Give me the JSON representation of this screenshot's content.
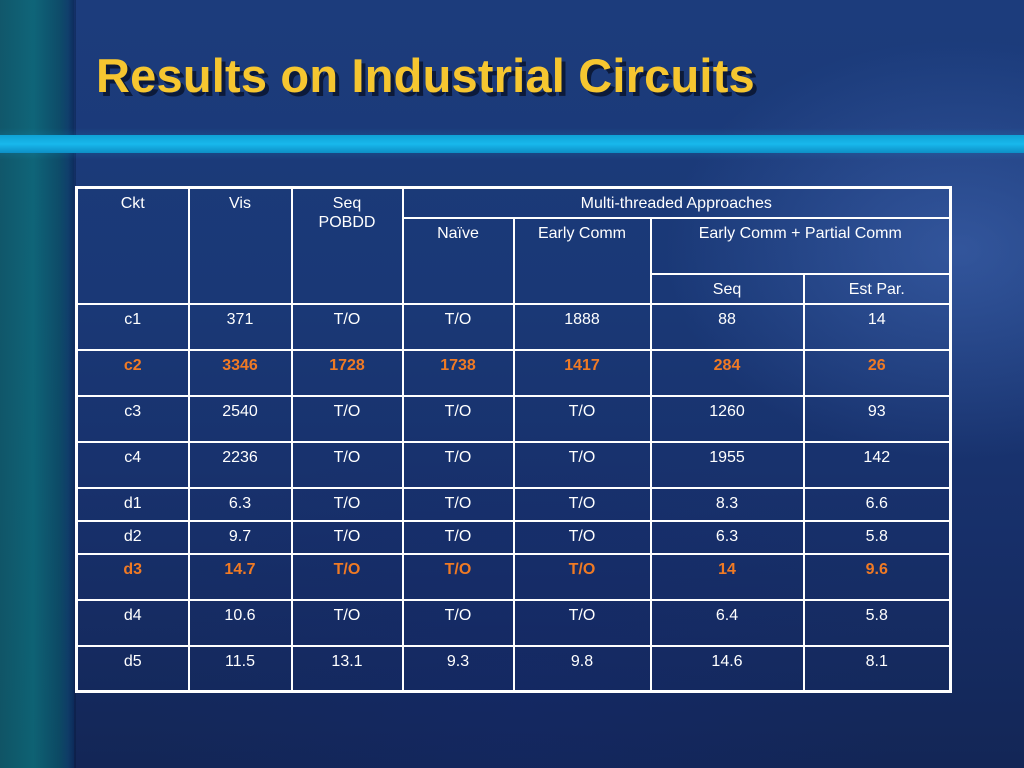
{
  "slide": {
    "title": "Results on Industrial Circuits"
  },
  "table": {
    "headers": {
      "ckt": "Ckt",
      "vis": "Vis",
      "seq_pobdd": "Seq\nPOBDD",
      "multi_threaded": "Multi-threaded Approaches",
      "naive": "Naïve",
      "early_comm": "Early Comm",
      "early_partial": "Early Comm + Partial Comm",
      "seq": "Seq",
      "est_par": "Est Par."
    },
    "rows": [
      [
        "c1",
        "371",
        "T/O",
        "T/O",
        "1888",
        "88",
        "14"
      ],
      [
        "c2",
        "3346",
        "1728",
        "1738",
        "1417",
        "284",
        "26"
      ],
      [
        "c3",
        "2540",
        "T/O",
        "T/O",
        "T/O",
        "1260",
        "93"
      ],
      [
        "c4",
        "2236",
        "T/O",
        "T/O",
        "T/O",
        "1955",
        "142"
      ],
      [
        "d1",
        "6.3",
        "T/O",
        "T/O",
        "T/O",
        "8.3",
        "6.6"
      ],
      [
        "d2",
        "9.7",
        "T/O",
        "T/O",
        "T/O",
        "6.3",
        "5.8"
      ],
      [
        "d3",
        "14.7",
        "T/O",
        "T/O",
        "T/O",
        "14",
        "9.6"
      ],
      [
        "d4",
        "10.6",
        "T/O",
        "T/O",
        "T/O",
        "6.4",
        "5.8"
      ],
      [
        "d5",
        "11.5",
        "13.1",
        "9.3",
        "9.8",
        "14.6",
        "8.1"
      ]
    ],
    "highlight_color": "#f07a24"
  },
  "colors": {
    "title": "#f6c630",
    "background": "#1a3876",
    "stripe": "#18b8ec"
  }
}
